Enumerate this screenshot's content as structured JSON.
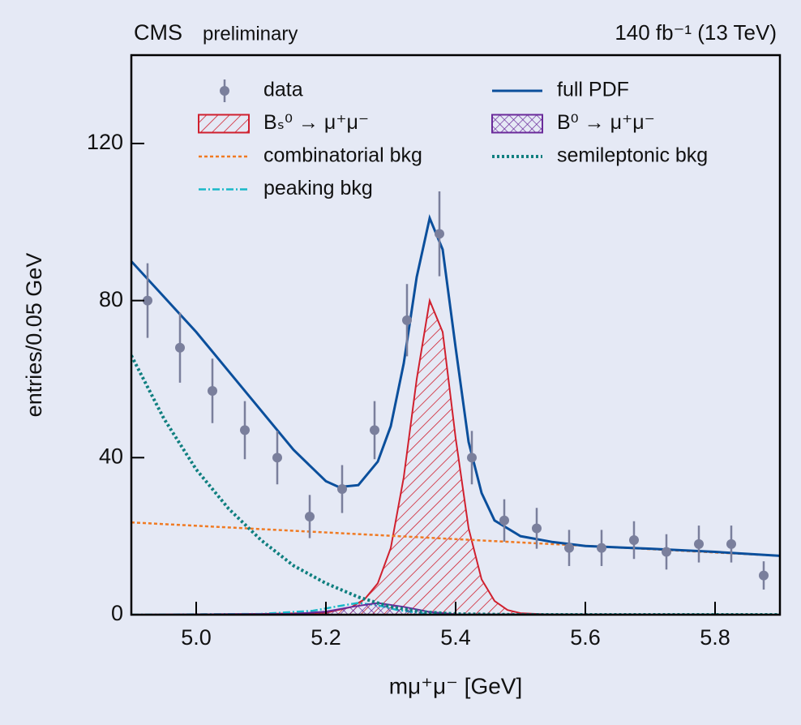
{
  "chart_data": {
    "type": "line",
    "experiment": "CMS",
    "status": "preliminary",
    "lumi": "140 fb⁻¹ (13 TeV)",
    "xlabel": "mμ⁺μ⁻ [GeV]",
    "ylabel": "entries/0.05 GeV",
    "xlim": [
      4.9,
      5.9
    ],
    "ylim": [
      0,
      142.5
    ],
    "xticks": [
      {
        "value": 5,
        "label": "5.0"
      },
      5.2,
      5.4,
      5.6,
      5.8
    ],
    "yticks": [
      0,
      40,
      80,
      120
    ],
    "series": [
      {
        "name": "data",
        "color": "#7a7f9c",
        "style": "points",
        "x": [
          4.925,
          4.975,
          5.025,
          5.075,
          5.125,
          5.175,
          5.225,
          5.275,
          5.325,
          5.375,
          5.425,
          5.475,
          5.525,
          5.575,
          5.625,
          5.675,
          5.725,
          5.775,
          5.825,
          5.875
        ],
        "values": [
          80,
          68,
          57,
          47,
          40,
          25,
          32,
          47,
          75,
          97,
          40,
          24,
          22,
          17,
          17,
          19,
          16,
          18,
          18,
          10
        ],
        "errors": [
          9.5,
          8.9,
          8.2,
          7.4,
          6.8,
          5.5,
          6.1,
          7.4,
          9.2,
          10.8,
          6.8,
          5.4,
          5.2,
          4.6,
          4.6,
          4.8,
          4.5,
          4.7,
          4.7,
          3.6
        ]
      },
      {
        "name": "Bₛ⁰ → μ⁺μ⁻",
        "color": "#d0202e",
        "style": "hatch",
        "x": [
          4.9,
          5.1,
          5.2,
          5.24,
          5.26,
          5.28,
          5.3,
          5.32,
          5.34,
          5.36,
          5.38,
          5.4,
          5.42,
          5.44,
          5.46,
          5.48,
          5.5,
          5.55,
          5.9
        ],
        "values": [
          0,
          0.2,
          0.5,
          2,
          4,
          8,
          17,
          35,
          60,
          80,
          72,
          45,
          22,
          9,
          3.5,
          1.2,
          0.4,
          0,
          0
        ]
      },
      {
        "name": "combinatorial bkg",
        "color": "#f07a22",
        "style": "dashed",
        "x": [
          4.9,
          5.9
        ],
        "values": [
          23.5,
          15
        ]
      },
      {
        "name": "peaking bkg",
        "color": "#19b8c8",
        "style": "dashdot",
        "x": [
          4.9,
          5.1,
          5.18,
          5.22,
          5.25,
          5.28,
          5.31,
          5.35,
          5.4,
          5.9
        ],
        "values": [
          0,
          0.2,
          1,
          2.2,
          3,
          2.4,
          1.2,
          0.3,
          0,
          0
        ]
      },
      {
        "name": "full PDF",
        "color": "#0b4f9c",
        "style": "line",
        "x": [
          4.9,
          4.95,
          5.0,
          5.05,
          5.1,
          5.15,
          5.2,
          5.22,
          5.25,
          5.28,
          5.3,
          5.32,
          5.34,
          5.36,
          5.38,
          5.4,
          5.42,
          5.44,
          5.46,
          5.5,
          5.55,
          5.6,
          5.7,
          5.8,
          5.9
        ],
        "values": [
          90,
          81,
          72,
          62,
          52,
          42,
          34,
          32.5,
          33,
          39,
          48,
          64,
          86,
          101,
          93,
          68,
          44,
          31,
          24,
          20,
          18.5,
          17.5,
          16.8,
          16,
          15
        ]
      },
      {
        "name": "B⁰ → μ⁺μ⁻",
        "color": "#6a2a9a",
        "style": "crosshatch",
        "x": [
          4.9,
          5.15,
          5.2,
          5.24,
          5.28,
          5.32,
          5.36,
          5.4,
          5.9
        ],
        "values": [
          0,
          0.2,
          0.8,
          2,
          3,
          2,
          0.7,
          0.1,
          0
        ]
      },
      {
        "name": "semileptonic bkg",
        "color": "#0f7f7f",
        "style": "dotted",
        "x": [
          4.9,
          4.95,
          5.0,
          5.05,
          5.1,
          5.15,
          5.2,
          5.25,
          5.3,
          5.35,
          5.4,
          5.5,
          5.9
        ],
        "values": [
          66,
          50,
          37,
          27,
          19,
          12.5,
          8,
          4.5,
          2,
          0.7,
          0.2,
          0,
          0
        ]
      }
    ]
  }
}
